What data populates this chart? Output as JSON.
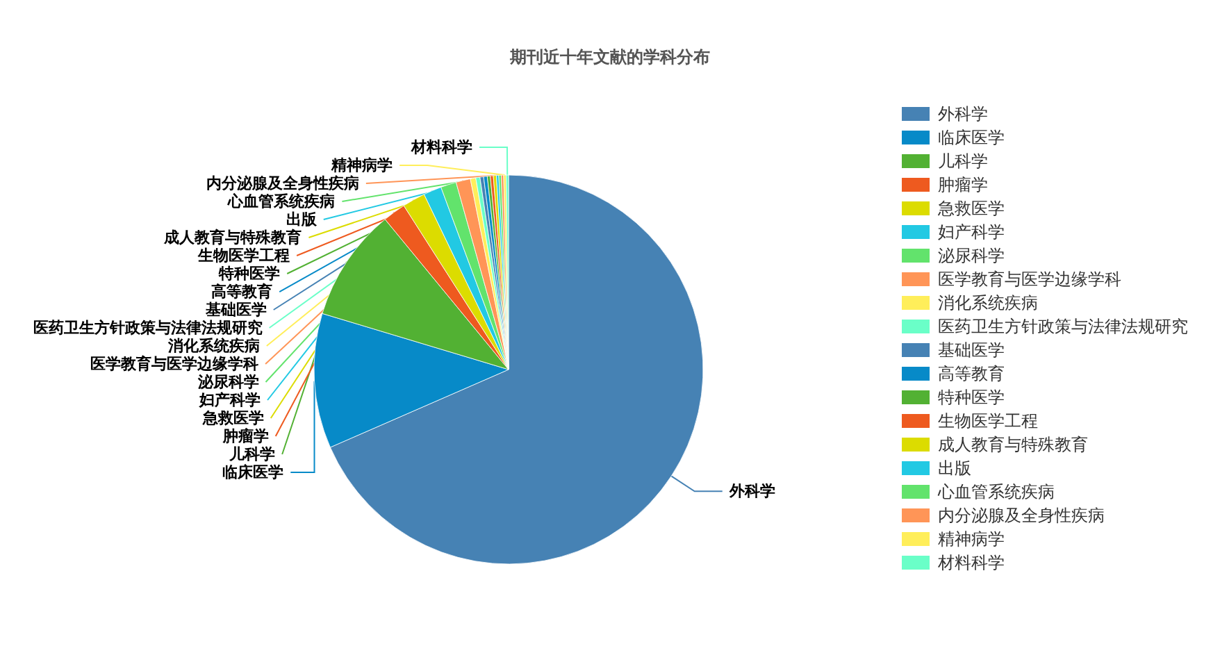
{
  "chart_data": {
    "type": "pie",
    "title": "期刊近十年文献的学科分布",
    "categories": [
      "外科学",
      "临床医学",
      "儿科学",
      "肿瘤学",
      "急救医学",
      "妇产科学",
      "泌尿科学",
      "医学教育与医学边缘学科",
      "消化系统疾病",
      "医药卫生方针政策与法律法规研究",
      "基础医学",
      "高等教育",
      "特种医学",
      "生物医学工程",
      "成人教育与特殊教育",
      "出版",
      "心血管系统疾病",
      "内分泌腺及全身性疾病",
      "精神病学",
      "材料科学"
    ],
    "values": [
      68.45,
      11.2,
      9.4,
      1.9,
      1.9,
      1.5,
      1.3,
      1.2,
      0.45,
      0.35,
      0.3,
      0.3,
      0.25,
      0.25,
      0.25,
      0.2,
      0.2,
      0.2,
      0.2,
      0.2
    ],
    "colors": [
      "#4682b4",
      "#078ac8",
      "#52b133",
      "#ee5a1f",
      "#dcdc00",
      "#22c9e3",
      "#62e36c",
      "#ff9557",
      "#ffee5a",
      "#6affc8",
      "#4682b4",
      "#078ac8",
      "#52b133",
      "#ee5a1f",
      "#dcdc00",
      "#22c9e3",
      "#62e36c",
      "#ff9557",
      "#ffee5a",
      "#6affc8"
    ],
    "legend": "right"
  }
}
